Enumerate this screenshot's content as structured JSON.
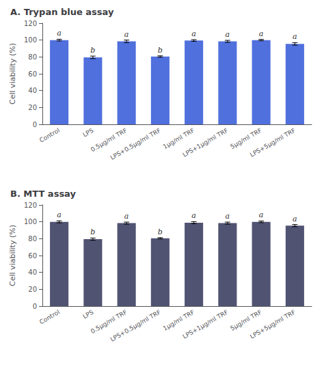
{
  "chart_data": [
    {
      "type": "bar",
      "title": "A. Trypan blue assay",
      "categories": [
        "Control",
        "LPS",
        "0.5μg/ml TRF",
        "LPS+0.5μg/ml TRF",
        "1μg/ml TRF",
        "LPS+1μg/ml TRF",
        "5μg/ml TRF",
        "LPS+5μg/ml TRF"
      ],
      "values": [
        100.0,
        79.5,
        98.5,
        80.5,
        99.5,
        98.5,
        100.0,
        95.5
      ],
      "errors": [
        1.0,
        1.5,
        1.5,
        0.8,
        1.0,
        1.2,
        0.8,
        1.5
      ],
      "annotations": [
        "a",
        "b",
        "a",
        "b",
        "a",
        "a",
        "a",
        "a"
      ],
      "ylabel": "Cell viability (%)",
      "ylim": [
        0,
        120
      ],
      "yticks": [
        0,
        20,
        40,
        60,
        80,
        100,
        120
      ],
      "grid": false
    },
    {
      "type": "bar",
      "title": "B. MTT assay",
      "categories": [
        "Control",
        "LPS",
        "0.5μg/ml TRF",
        "LPS+0.5μg/ml TRF",
        "1μg/ml TRF",
        "LPS+1μg/ml TRF",
        "5μg/ml TRF",
        "LPS+5μg/ml TRF"
      ],
      "values": [
        100.0,
        79.5,
        98.5,
        80.5,
        99.0,
        98.5,
        100.0,
        95.5
      ],
      "errors": [
        1.2,
        1.3,
        1.2,
        0.7,
        1.2,
        1.2,
        1.0,
        1.3
      ],
      "annotations": [
        "a",
        "b",
        "a",
        "b",
        "a",
        "a",
        "a",
        "a"
      ],
      "ylabel": "Cell viability (%)",
      "ylim": [
        0,
        120
      ],
      "yticks": [
        0,
        20,
        40,
        60,
        80,
        100,
        120
      ],
      "grid": false
    }
  ]
}
